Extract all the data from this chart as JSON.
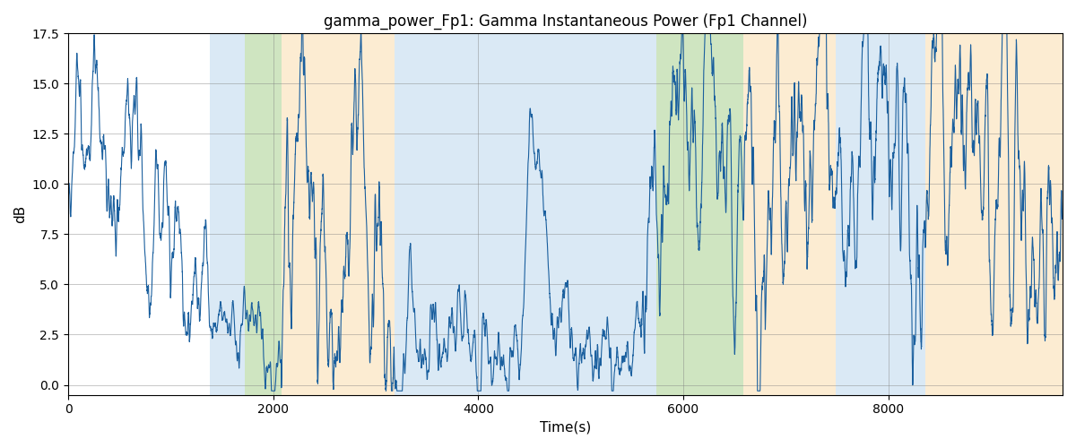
{
  "title": "gamma_power_Fp1: Gamma Instantaneous Power (Fp1 Channel)",
  "xlabel": "Time(s)",
  "ylabel": "dB",
  "ylim": [
    -0.5,
    17.5
  ],
  "xlim": [
    0,
    9700
  ],
  "line_color": "#1a5f9e",
  "line_width": 0.8,
  "bg_bands": [
    {
      "xmin": 1380,
      "xmax": 1720,
      "color": "#bdd7ee",
      "alpha": 0.55
    },
    {
      "xmin": 1720,
      "xmax": 2080,
      "color": "#a9d18e",
      "alpha": 0.55
    },
    {
      "xmin": 2080,
      "xmax": 3180,
      "color": "#fce4c0",
      "alpha": 0.7
    },
    {
      "xmin": 3180,
      "xmax": 5590,
      "color": "#bdd7ee",
      "alpha": 0.55
    },
    {
      "xmin": 5590,
      "xmax": 5740,
      "color": "#bdd7ee",
      "alpha": 0.55
    },
    {
      "xmin": 5740,
      "xmax": 6590,
      "color": "#a9d18e",
      "alpha": 0.55
    },
    {
      "xmin": 6590,
      "xmax": 7490,
      "color": "#fce4c0",
      "alpha": 0.7
    },
    {
      "xmin": 7490,
      "xmax": 8360,
      "color": "#bdd7ee",
      "alpha": 0.55
    },
    {
      "xmin": 8360,
      "xmax": 9700,
      "color": "#fce4c0",
      "alpha": 0.7
    }
  ],
  "xticks": [
    0,
    2000,
    4000,
    6000,
    8000
  ],
  "yticks": [
    0.0,
    2.5,
    5.0,
    7.5,
    10.0,
    12.5,
    15.0,
    17.5
  ],
  "title_fontsize": 12,
  "axis_fontsize": 11,
  "tick_fontsize": 10,
  "grid_alpha": 0.6,
  "grid_lw": 0.5
}
